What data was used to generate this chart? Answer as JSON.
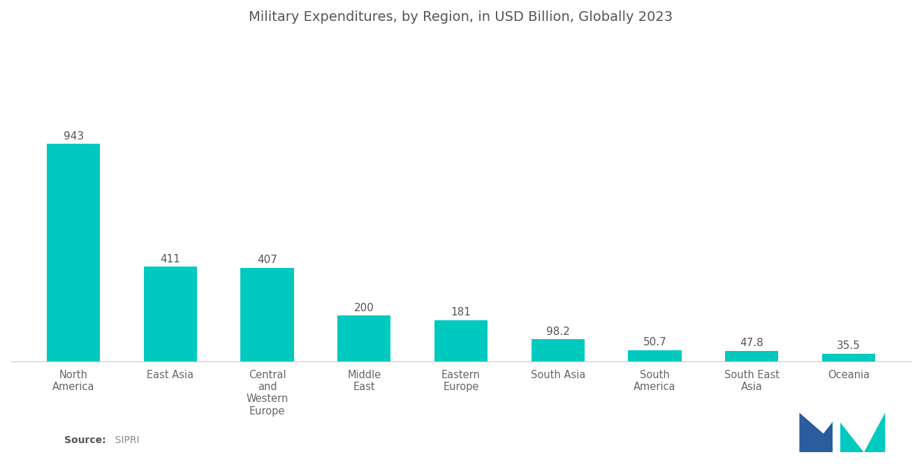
{
  "title": "Military Expenditures, by Region, in USD Billion, Globally 2023",
  "categories": [
    "North\nAmerica",
    "East Asia",
    "Central\nand\nWestern\nEurope",
    "Middle\nEast",
    "Eastern\nEurope",
    "South Asia",
    "South\nAmerica",
    "South East\nAsia",
    "Oceania"
  ],
  "values": [
    943,
    411,
    407,
    200,
    181,
    98.2,
    50.7,
    47.8,
    35.5
  ],
  "bar_color": "#00C9C0",
  "background_color": "#ffffff",
  "source_label": "Source:",
  "source_value": "  SIPRI",
  "title_fontsize": 14,
  "label_fontsize": 10.5,
  "value_fontsize": 11,
  "ylim": [
    0,
    1400
  ],
  "bar_width": 0.55
}
